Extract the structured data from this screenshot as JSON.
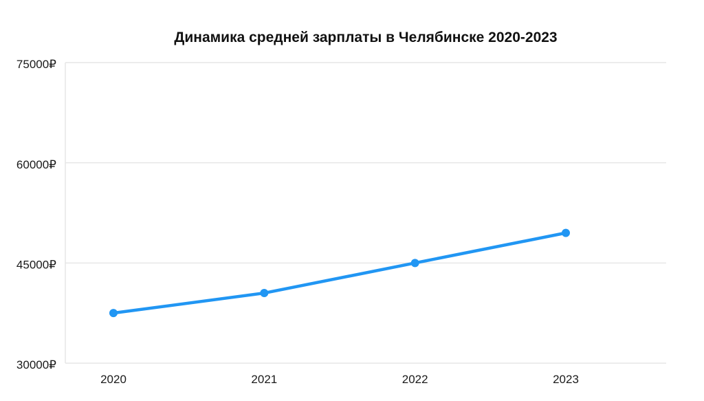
{
  "chart_data": {
    "type": "line",
    "title": "Динамика средней зарплаты в Челябинске 2020-2023",
    "categories": [
      "2020",
      "2021",
      "2022",
      "2023"
    ],
    "values": [
      37500,
      40500,
      45000,
      49500
    ],
    "xlabel": "",
    "ylabel": "",
    "ylim": [
      30000,
      75000
    ],
    "y_ticks": [
      30000,
      45000,
      60000,
      75000
    ],
    "y_tick_suffix": "₽",
    "grid": "horizontal-only",
    "legend_position": "none",
    "colors": {
      "line": "#2196f3",
      "point": "#2196f3",
      "grid": "#e6e6e6",
      "axis_border": "#e6e6e6",
      "tick_text": "#1a1a1a",
      "title_text": "#111111",
      "background": "#ffffff"
    }
  }
}
